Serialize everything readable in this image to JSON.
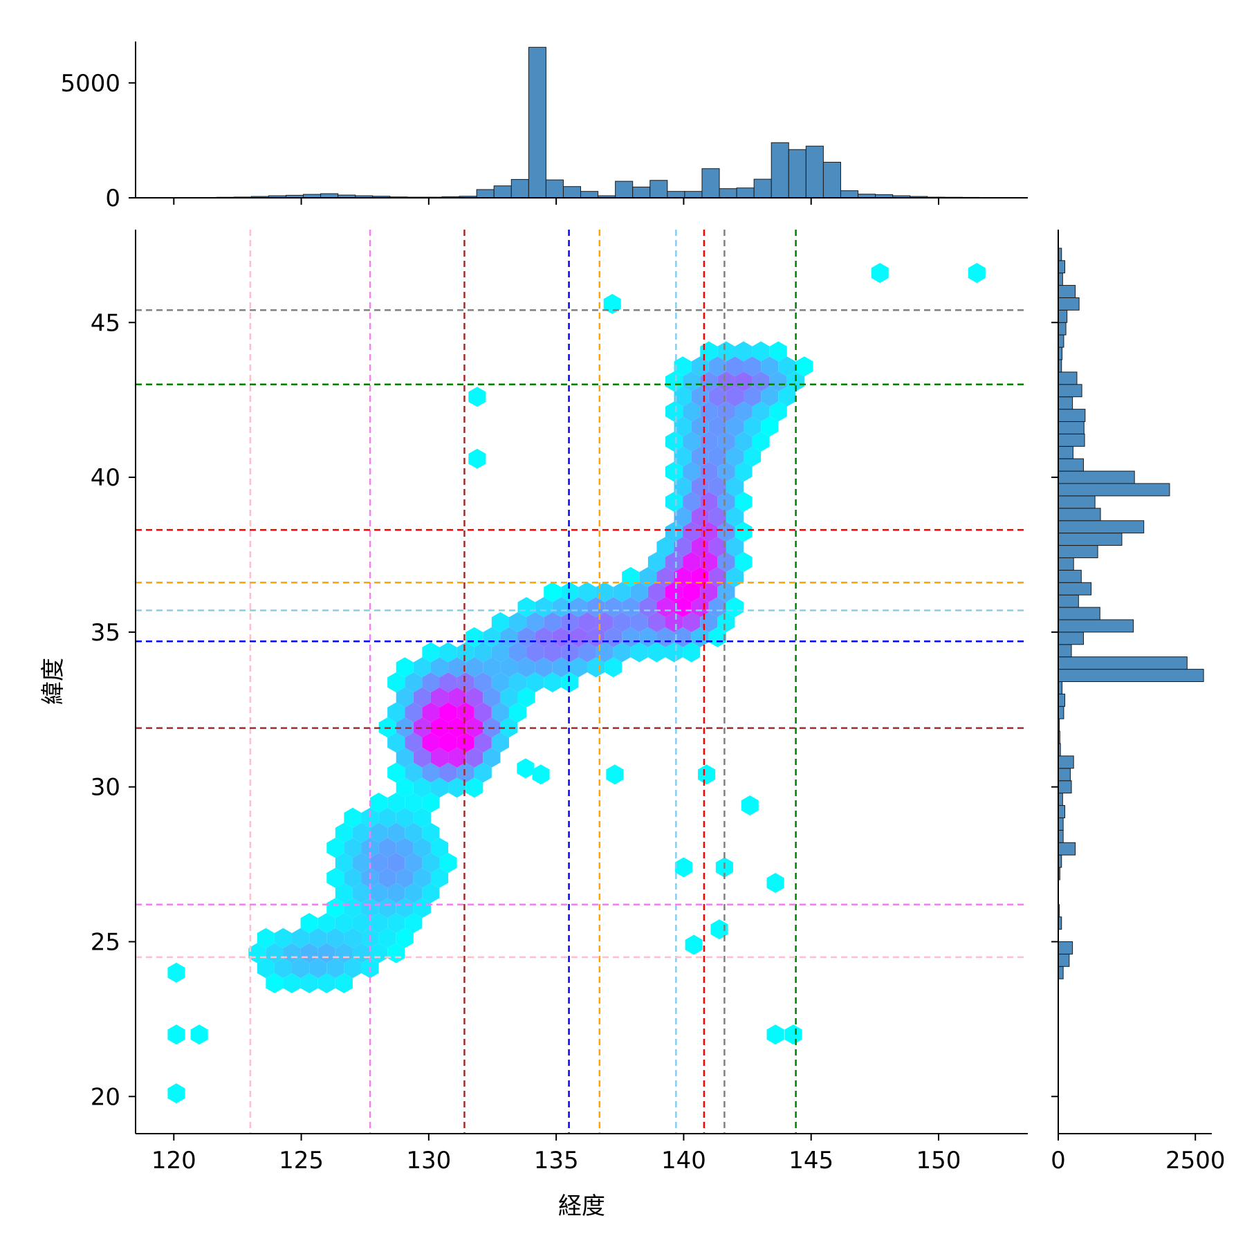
{
  "chart_data": {
    "type": "hexbin",
    "xlabel": "経度",
    "ylabel": "緯度",
    "xlim": [
      118.5,
      153.5
    ],
    "ylim": [
      18.8,
      48.0
    ],
    "x_ticks": [
      120,
      125,
      130,
      135,
      140,
      145,
      150
    ],
    "y_ticks": [
      20,
      25,
      30,
      35,
      40,
      45
    ],
    "colormap": {
      "low": "#00ffff",
      "mid": "#7f7fff",
      "high": "#ff00ff"
    },
    "hex_color": "#4c8cbf",
    "top_histogram": {
      "ticks": [
        0,
        5000
      ],
      "ylim": [
        0,
        6800
      ],
      "bin_start": 121.0,
      "bin_width": 0.68,
      "counts": [
        15,
        25,
        35,
        60,
        90,
        110,
        150,
        180,
        120,
        90,
        70,
        40,
        30,
        30,
        50,
        70,
        360,
        520,
        800,
        6550,
        780,
        490,
        280,
        90,
        720,
        470,
        760,
        280,
        280,
        1270,
        400,
        430,
        810,
        2400,
        2100,
        2250,
        1550,
        310,
        160,
        140,
        90,
        60,
        30,
        25,
        20
      ]
    },
    "right_histogram": {
      "ticks": [
        0,
        2500
      ],
      "xlim": [
        0,
        2800
      ],
      "bin_start": 23.8,
      "bin_width": 0.4,
      "counts": [
        90,
        200,
        260,
        0,
        60,
        20,
        0,
        0,
        30,
        60,
        310,
        90,
        90,
        120,
        80,
        240,
        220,
        280,
        40,
        30,
        20,
        100,
        120,
        70,
        2650,
        2350,
        240,
        460,
        1370,
        760,
        370,
        600,
        420,
        280,
        720,
        1160,
        1560,
        770,
        670,
        2030,
        1390,
        460,
        270,
        480,
        470,
        490,
        260,
        430,
        340,
        60,
        70,
        100,
        140,
        160,
        380,
        310,
        80,
        120,
        60
      ]
    },
    "reference_lines": {
      "vertical": [
        {
          "x": 123.0,
          "color": "#ffc0cb"
        },
        {
          "x": 127.7,
          "color": "#ee82ee"
        },
        {
          "x": 131.4,
          "color": "#a52a2a"
        },
        {
          "x": 135.5,
          "color": "#0000ff"
        },
        {
          "x": 136.7,
          "color": "#ffa500"
        },
        {
          "x": 139.7,
          "color": "#87ceeb"
        },
        {
          "x": 140.8,
          "color": "#ff0000"
        },
        {
          "x": 141.6,
          "color": "#808080"
        },
        {
          "x": 144.4,
          "color": "#008000"
        }
      ],
      "horizontal": [
        {
          "y": 45.4,
          "color": "#808080"
        },
        {
          "y": 43.0,
          "color": "#008000"
        },
        {
          "y": 38.3,
          "color": "#ff0000"
        },
        {
          "y": 36.6,
          "color": "#ffa500"
        },
        {
          "y": 35.7,
          "color": "#87ceeb"
        },
        {
          "y": 34.7,
          "color": "#0000ff"
        },
        {
          "y": 31.9,
          "color": "#a52a2a"
        },
        {
          "y": 26.2,
          "color": "#ee82ee"
        },
        {
          "y": 24.5,
          "color": "#ffc0cb"
        }
      ]
    },
    "density_cores": [
      {
        "x": 125.5,
        "y": 24.5,
        "sx": 2.0,
        "sy": 0.8,
        "w": 0.4
      },
      {
        "x": 128.5,
        "y": 27.5,
        "sx": 1.6,
        "sy": 1.4,
        "w": 0.5
      },
      {
        "x": 130.8,
        "y": 31.5,
        "sx": 1.2,
        "sy": 0.9,
        "w": 1.0
      },
      {
        "x": 131.0,
        "y": 33.0,
        "sx": 1.5,
        "sy": 1.0,
        "w": 0.55
      },
      {
        "x": 134.5,
        "y": 34.6,
        "sx": 1.5,
        "sy": 0.9,
        "w": 0.55
      },
      {
        "x": 137.0,
        "y": 35.3,
        "sx": 1.3,
        "sy": 0.9,
        "w": 0.5
      },
      {
        "x": 139.8,
        "y": 35.8,
        "sx": 1.0,
        "sy": 0.9,
        "w": 0.75
      },
      {
        "x": 140.6,
        "y": 37.0,
        "sx": 1.0,
        "sy": 1.0,
        "w": 0.6
      },
      {
        "x": 140.9,
        "y": 38.8,
        "sx": 0.8,
        "sy": 1.2,
        "w": 0.55
      },
      {
        "x": 141.3,
        "y": 41.5,
        "sx": 1.3,
        "sy": 1.3,
        "w": 0.45
      },
      {
        "x": 142.5,
        "y": 43.2,
        "sx": 1.6,
        "sy": 0.7,
        "w": 0.5
      }
    ],
    "isolated_points": [
      [
        120.1,
        20.1
      ],
      [
        120.1,
        22.0
      ],
      [
        121.0,
        22.0
      ],
      [
        120.1,
        24.0
      ],
      [
        131.9,
        42.6
      ],
      [
        131.9,
        40.6
      ],
      [
        137.2,
        45.6
      ],
      [
        147.7,
        46.6
      ],
      [
        151.5,
        46.6
      ],
      [
        140.4,
        24.9
      ],
      [
        141.4,
        25.4
      ],
      [
        143.6,
        26.9
      ],
      [
        143.6,
        22.0
      ],
      [
        144.3,
        22.0
      ],
      [
        137.3,
        30.4
      ],
      [
        134.4,
        30.4
      ],
      [
        133.8,
        30.6
      ],
      [
        140.9,
        30.4
      ],
      [
        142.6,
        29.4
      ],
      [
        140.0,
        27.4
      ],
      [
        141.6,
        27.4
      ]
    ]
  }
}
